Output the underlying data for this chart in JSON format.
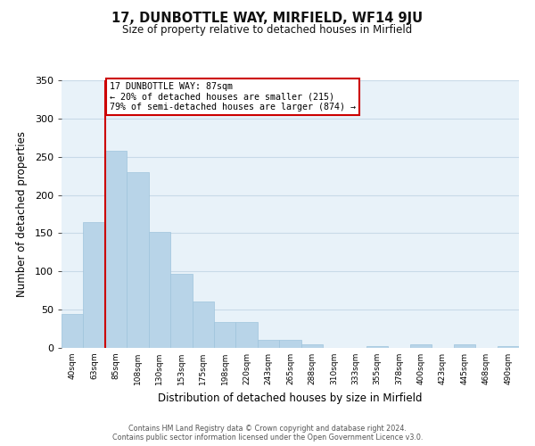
{
  "title": "17, DUNBOTTLE WAY, MIRFIELD, WF14 9JU",
  "subtitle": "Size of property relative to detached houses in Mirfield",
  "xlabel": "Distribution of detached houses by size in Mirfield",
  "ylabel": "Number of detached properties",
  "bin_labels": [
    "40sqm",
    "63sqm",
    "85sqm",
    "108sqm",
    "130sqm",
    "153sqm",
    "175sqm",
    "198sqm",
    "220sqm",
    "243sqm",
    "265sqm",
    "288sqm",
    "310sqm",
    "333sqm",
    "355sqm",
    "378sqm",
    "400sqm",
    "423sqm",
    "445sqm",
    "468sqm",
    "490sqm"
  ],
  "bar_heights": [
    44,
    165,
    258,
    230,
    152,
    97,
    61,
    34,
    34,
    11,
    11,
    5,
    0,
    0,
    2,
    0,
    5,
    0,
    5,
    0,
    2
  ],
  "bar_color": "#b8d4e8",
  "bar_edge_color": "#9fc4dc",
  "property_line_color": "#cc0000",
  "annotation_text": "17 DUNBOTTLE WAY: 87sqm\n← 20% of detached houses are smaller (215)\n79% of semi-detached houses are larger (874) →",
  "annotation_box_color": "#ffffff",
  "annotation_box_edge": "#cc0000",
  "ylim": [
    0,
    350
  ],
  "yticks": [
    0,
    50,
    100,
    150,
    200,
    250,
    300,
    350
  ],
  "footer1": "Contains HM Land Registry data © Crown copyright and database right 2024.",
  "footer2": "Contains public sector information licensed under the Open Government Licence v3.0.",
  "grid_color": "#c8dae8",
  "background_color": "#e8f2f9"
}
